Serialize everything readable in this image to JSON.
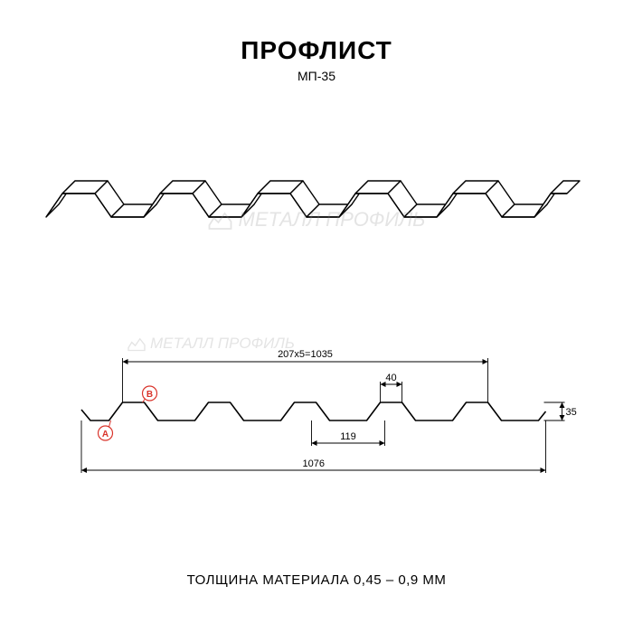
{
  "title": "ПРОФЛИСТ",
  "subtitle": "МП-35",
  "thickness_note": "ТОЛЩИНА МАТЕРИАЛА 0,45 – 0,9 ММ",
  "watermark_text": "МЕТАЛЛ ПРОФИЛЬ",
  "dimensions": {
    "top_width_formula": "207x5=1035",
    "bottom_width": "1076",
    "rib_top": "40",
    "rib_bottom": "119",
    "height": "35"
  },
  "markers": {
    "a": "A",
    "b": "B"
  },
  "colors": {
    "line": "#000000",
    "marker": "#d9332a",
    "watermark": "#888888",
    "background": "#ffffff"
  },
  "profile_3d": {
    "period": 108,
    "repeats": 5,
    "top_w": 36,
    "slope_w": 18,
    "valley_w": 36,
    "depth": 26,
    "extrude_dx": 14,
    "extrude_dy": -14,
    "stroke_width": 1.4
  },
  "schematic_profile": {
    "period": 95,
    "repeats": 5,
    "top_w": 24,
    "slope_w": 15,
    "valley_w": 41,
    "height": 20,
    "lead_in": 20,
    "stroke_width": 1.6,
    "dim_stroke_width": 0.9
  }
}
